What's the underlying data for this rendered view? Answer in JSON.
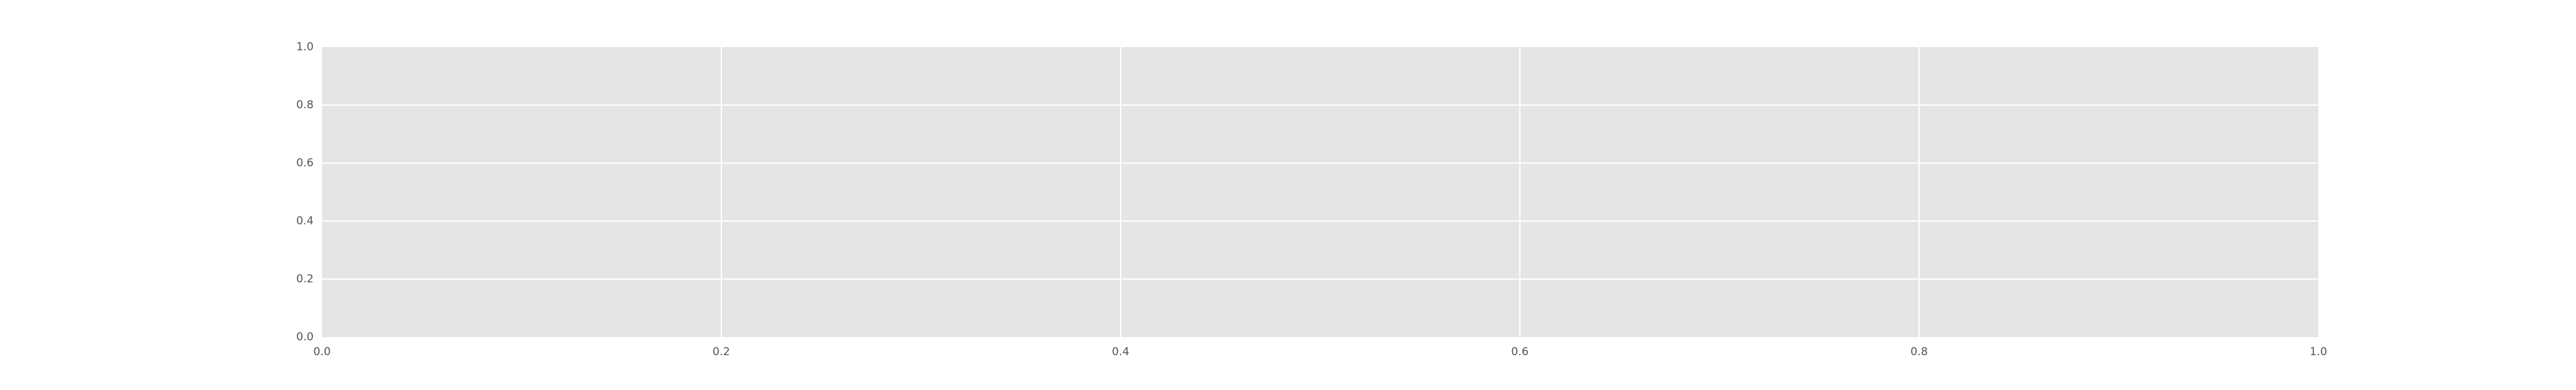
{
  "chart_data": {
    "type": "line",
    "title": "",
    "xlabel": "",
    "ylabel": "",
    "xlim": [
      0.0,
      1.0
    ],
    "ylim": [
      0.0,
      1.0
    ],
    "x_ticks": [
      "0.0",
      "0.2",
      "0.4",
      "0.6",
      "0.8",
      "1.0"
    ],
    "y_ticks": [
      "0.0",
      "0.2",
      "0.4",
      "0.6",
      "0.8",
      "1.0"
    ],
    "series": [],
    "grid": true,
    "legend": "none",
    "colors": {
      "plot_background": "#e5e5e5",
      "grid": "#ffffff",
      "tick_label": "#555555",
      "page_background": "#ffffff"
    }
  }
}
